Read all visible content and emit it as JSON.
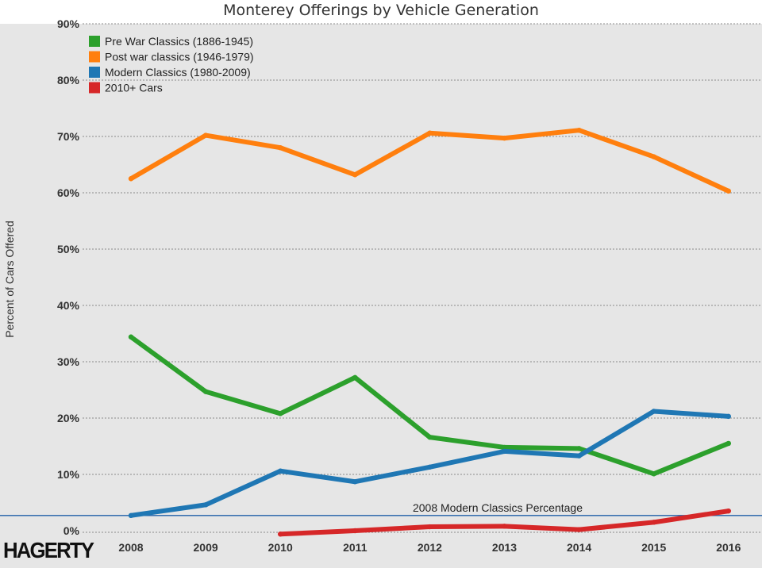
{
  "chart_data": {
    "type": "line",
    "title": "Monterey Offerings by Vehicle Generation",
    "xlabel": "",
    "ylabel": "Percent of Cars Offered",
    "categories": [
      "2008",
      "2009",
      "2010",
      "2011",
      "2012",
      "2013",
      "2014",
      "2015",
      "2016"
    ],
    "ylim": [
      0,
      90
    ],
    "yticks": [
      0,
      10,
      20,
      30,
      40,
      50,
      60,
      70,
      80,
      90
    ],
    "ytick_labels": [
      "0%",
      "10%",
      "20%",
      "30%",
      "40%",
      "50%",
      "60%",
      "70%",
      "80%",
      "90%"
    ],
    "grid": true,
    "legend_position": "top-left",
    "series": [
      {
        "name": "Pre War Classics (1886-1945)",
        "color": "#2ca02c",
        "values": [
          34.4,
          24.7,
          20.8,
          27.2,
          16.6,
          14.8,
          14.6,
          10.1,
          15.5
        ]
      },
      {
        "name": "Post war classics (1946-1979)",
        "color": "#ff7f0e",
        "values": [
          62.5,
          70.2,
          68.0,
          63.2,
          70.6,
          69.7,
          71.1,
          66.4,
          60.3
        ]
      },
      {
        "name": "Modern Classics (1980-2009)",
        "color": "#1f77b4",
        "values": [
          2.7,
          4.6,
          10.6,
          8.7,
          11.3,
          14.1,
          13.3,
          21.2,
          20.3
        ]
      },
      {
        "name": "2010+ Cars",
        "color": "#d62728",
        "values": [
          null,
          null,
          -0.6,
          0.0,
          0.7,
          0.8,
          0.2,
          1.5,
          3.5
        ]
      }
    ],
    "reference_line": {
      "value": 2.7,
      "label": "2008 Modern Classics Percentage",
      "color": "#1f5fa8"
    }
  },
  "branding": {
    "logo_text": "HAGERTY"
  }
}
